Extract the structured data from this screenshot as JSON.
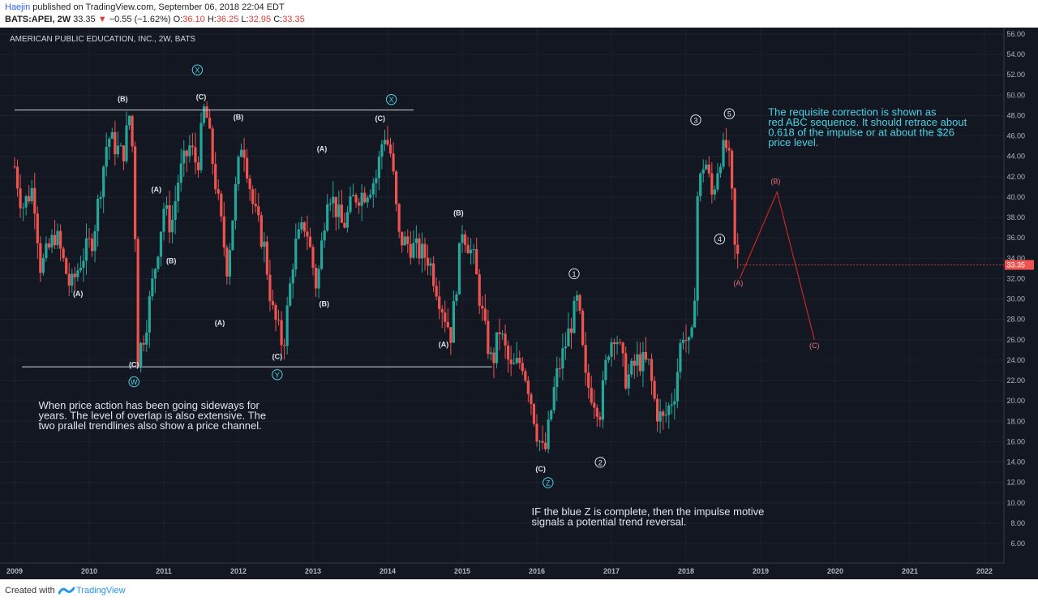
{
  "header": {
    "author": "Haejin",
    "published": "published on TradingView.com, September 06, 2018 22:04 EDT",
    "symbol": "BATS:APEI, 2W",
    "last": "33.35",
    "change_arrow": "▼",
    "change": "−0.55 (−1.62%)",
    "o_label": "O:",
    "o_value": "36.10",
    "h_label": "H:",
    "h_value": "36.25",
    "l_label": "L:",
    "l_value": "32.95",
    "c_label": "C:",
    "c_value": "33.35"
  },
  "footer": {
    "created_with": "Created with",
    "brand": "TradingView"
  },
  "colors": {
    "background": "#131722",
    "up": "#26a69a",
    "down": "#ef5350",
    "wave_blue": "#4dd0e1",
    "correction_red": "#c62828",
    "text_white": "#e0e3eb",
    "note_cyan": "#4dd0e1"
  },
  "chart_data": {
    "type": "candlestick",
    "title": "AMERICAN PUBLIC EDUCATION, INC., 2W, BATS",
    "xlabel": "",
    "ylabel": "",
    "ylim": [
      4,
      56
    ],
    "xlim": [
      2009.0,
      2022.3
    ],
    "y_ticks": [
      "6.00",
      "8.00",
      "10.00",
      "12.00",
      "14.00",
      "16.00",
      "18.00",
      "20.00",
      "22.00",
      "24.00",
      "26.00",
      "28.00",
      "30.00",
      "32.00",
      "34.00",
      "36.00",
      "38.00",
      "40.00",
      "42.00",
      "44.00",
      "46.00",
      "48.00",
      "50.00",
      "52.00",
      "54.00",
      "56.00"
    ],
    "x_ticks": [
      "2009",
      "2010",
      "2011",
      "2012",
      "2013",
      "2014",
      "2015",
      "2016",
      "2017",
      "2018",
      "2019",
      "2020",
      "2021",
      "2022"
    ],
    "last_price": "33.35",
    "grid": true,
    "price_path": [
      [
        2009.0,
        43.0
      ],
      [
        2009.1,
        39.0
      ],
      [
        2009.25,
        41.0
      ],
      [
        2009.35,
        33.0
      ],
      [
        2009.55,
        36.5
      ],
      [
        2009.75,
        31.0
      ],
      [
        2009.9,
        34.0
      ],
      [
        2010.05,
        36.0
      ],
      [
        2010.25,
        46.0
      ],
      [
        2010.45,
        44.0
      ],
      [
        2010.55,
        48.5
      ],
      [
        2010.6,
        42.0
      ],
      [
        2010.65,
        24.2
      ],
      [
        2010.75,
        27.0
      ],
      [
        2010.9,
        34.0
      ],
      [
        2011.0,
        39.0
      ],
      [
        2011.1,
        37.0
      ],
      [
        2011.2,
        42.0
      ],
      [
        2011.35,
        45.0
      ],
      [
        2011.45,
        43.0
      ],
      [
        2011.55,
        49.2
      ],
      [
        2011.7,
        41.0
      ],
      [
        2011.85,
        33.0
      ],
      [
        2011.95,
        40.0
      ],
      [
        2012.05,
        46.0
      ],
      [
        2012.2,
        39.0
      ],
      [
        2012.35,
        35.0
      ],
      [
        2012.45,
        29.0
      ],
      [
        2012.6,
        25.3
      ],
      [
        2012.75,
        35.0
      ],
      [
        2012.9,
        37.5
      ],
      [
        2013.05,
        31.0
      ],
      [
        2013.2,
        41.0
      ],
      [
        2013.4,
        37.0
      ],
      [
        2013.55,
        40.0
      ],
      [
        2013.7,
        40.5
      ],
      [
        2013.85,
        42.0
      ],
      [
        2013.95,
        46.5
      ],
      [
        2014.05,
        44.0
      ],
      [
        2014.15,
        36.0
      ],
      [
        2014.35,
        35.0
      ],
      [
        2014.55,
        34.0
      ],
      [
        2014.7,
        30.0
      ],
      [
        2014.85,
        26.5
      ],
      [
        2015.0,
        37.0
      ],
      [
        2015.15,
        34.0
      ],
      [
        2015.3,
        27.0
      ],
      [
        2015.4,
        23.5
      ],
      [
        2015.5,
        27.0
      ],
      [
        2015.65,
        23.0
      ],
      [
        2015.8,
        24.0
      ],
      [
        2015.9,
        21.0
      ],
      [
        2016.0,
        17.0
      ],
      [
        2016.1,
        14.5
      ],
      [
        2016.25,
        22.0
      ],
      [
        2016.4,
        26.0
      ],
      [
        2016.55,
        30.0
      ],
      [
        2016.65,
        22.0
      ],
      [
        2016.75,
        20.5
      ],
      [
        2016.85,
        19.0
      ],
      [
        2016.95,
        25.0
      ],
      [
        2017.05,
        27.0
      ],
      [
        2017.2,
        22.0
      ],
      [
        2017.35,
        24.0
      ],
      [
        2017.5,
        23.5
      ],
      [
        2017.6,
        19.0
      ],
      [
        2017.7,
        18.0
      ],
      [
        2017.85,
        21.0
      ],
      [
        2017.95,
        27.0
      ],
      [
        2018.05,
        25.0
      ],
      [
        2018.1,
        27.0
      ],
      [
        2018.15,
        40.0
      ],
      [
        2018.25,
        44.0
      ],
      [
        2018.35,
        40.0
      ],
      [
        2018.45,
        44.0
      ],
      [
        2018.55,
        45.0
      ],
      [
        2018.6,
        42.0
      ],
      [
        2018.65,
        35.0
      ],
      [
        2018.72,
        33.35
      ]
    ],
    "trendlines": [
      {
        "x": [
          2009.0,
          2014.35
        ],
        "y": [
          48.55,
          48.55
        ]
      },
      {
        "x": [
          2009.1,
          2015.4
        ],
        "y": [
          23.35,
          23.35
        ]
      }
    ],
    "wave_labels": [
      {
        "text": "(B)",
        "x": 2010.45,
        "y": 49.4,
        "color": "white"
      },
      {
        "text": "(C)",
        "x": 2010.6,
        "y": 23.3,
        "color": "white"
      },
      {
        "text": "W",
        "x": 2010.6,
        "y": 21.6,
        "color": "blue",
        "circled": true
      },
      {
        "text": "(A)",
        "x": 2009.85,
        "y": 30.3,
        "color": "white"
      },
      {
        "text": "(A)",
        "x": 2010.9,
        "y": 40.5,
        "color": "white"
      },
      {
        "text": "(B)",
        "x": 2011.1,
        "y": 33.5,
        "color": "white"
      },
      {
        "text": "X",
        "x": 2011.45,
        "y": 52.2,
        "color": "blue",
        "circled": true
      },
      {
        "text": "(C)",
        "x": 2011.5,
        "y": 49.6,
        "color": "white"
      },
      {
        "text": "(B)",
        "x": 2012.0,
        "y": 47.6,
        "color": "white"
      },
      {
        "text": "(A)",
        "x": 2011.75,
        "y": 27.4,
        "color": "white"
      },
      {
        "text": "(C)",
        "x": 2012.52,
        "y": 24.1,
        "color": "white"
      },
      {
        "text": "Y",
        "x": 2012.52,
        "y": 22.3,
        "color": "blue",
        "circled": true
      },
      {
        "text": "(A)",
        "x": 2013.12,
        "y": 44.5,
        "color": "white"
      },
      {
        "text": "(B)",
        "x": 2013.15,
        "y": 29.3,
        "color": "white"
      },
      {
        "text": "X",
        "x": 2014.05,
        "y": 49.3,
        "color": "blue",
        "circled": true
      },
      {
        "text": "(C)",
        "x": 2013.9,
        "y": 47.5,
        "color": "white"
      },
      {
        "text": "(B)",
        "x": 2014.95,
        "y": 38.2,
        "color": "white"
      },
      {
        "text": "(A)",
        "x": 2014.75,
        "y": 25.3,
        "color": "white"
      },
      {
        "text": "1",
        "x": 2016.5,
        "y": 32.2,
        "color": "white",
        "circled": true
      },
      {
        "text": "(C)",
        "x": 2016.05,
        "y": 13.1,
        "color": "white"
      },
      {
        "text": "Z",
        "x": 2016.15,
        "y": 11.7,
        "color": "blue",
        "circled": true
      },
      {
        "text": "2",
        "x": 2016.85,
        "y": 13.7,
        "color": "white",
        "circled": true
      },
      {
        "text": "3",
        "x": 2018.13,
        "y": 47.3,
        "color": "white",
        "circled": true
      },
      {
        "text": "5",
        "x": 2018.58,
        "y": 47.9,
        "color": "white",
        "circled": true
      },
      {
        "text": "4",
        "x": 2018.45,
        "y": 35.6,
        "color": "white",
        "circled": true
      },
      {
        "text": "(A)",
        "x": 2018.7,
        "y": 31.3,
        "color": "red"
      },
      {
        "text": "(B)",
        "x": 2019.2,
        "y": 41.3,
        "color": "red"
      },
      {
        "text": "(C)",
        "x": 2019.72,
        "y": 25.2,
        "color": "red"
      }
    ],
    "projection": {
      "x": [
        2018.72,
        2019.22,
        2019.72
      ],
      "y": [
        32.0,
        40.5,
        26.0
      ]
    },
    "annotations": [
      {
        "lines": [
          "When price action has been going sideways for",
          "years. The level of overlap is also extensive. The",
          "two prallel trendlines also show a price channel."
        ],
        "x": 2009.32,
        "y": 19.2,
        "color": "white",
        "size": 13
      },
      {
        "lines": [
          "The requisite correction is shown as",
          "red ABC sequence. It should retrace about",
          "0.618 of the impulse or at about the $26",
          "price level."
        ],
        "x": 2019.1,
        "y": 48.0,
        "color": "cyan",
        "size": 13
      },
      {
        "lines": [
          "IF the blue Z is complete, then the impulse motive",
          "signals a potential trend reversal."
        ],
        "x": 2015.93,
        "y": 8.8,
        "color": "white",
        "size": 13
      }
    ]
  }
}
